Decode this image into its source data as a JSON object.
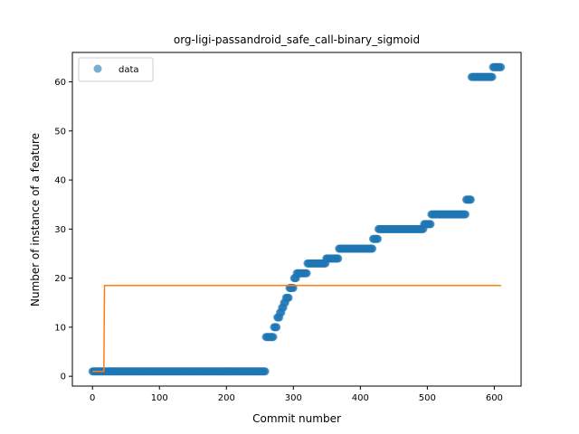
{
  "chart_data": {
    "type": "scatter",
    "title": "org-ligi-passandroid_safe_call-binary_sigmoid",
    "xlabel": "Commit number",
    "ylabel": "Number of instance of a feature",
    "xlim": [
      -30,
      640
    ],
    "ylim": [
      -2,
      66
    ],
    "xticks": [
      0,
      100,
      200,
      300,
      400,
      500,
      600
    ],
    "yticks": [
      0,
      10,
      20,
      30,
      40,
      50,
      60
    ],
    "grid": false,
    "legend_position": "upper-left",
    "series": [
      {
        "name": "data",
        "kind": "scatter",
        "color": "#1f77b4",
        "step_segments": [
          {
            "x_start": 0,
            "x_end": 258,
            "y": 1
          },
          {
            "x_start": 259,
            "x_end": 270,
            "y": 8
          },
          {
            "x_start": 271,
            "x_end": 275,
            "y": 10
          },
          {
            "x_start": 276,
            "x_end": 279,
            "y": 12
          },
          {
            "x_start": 280,
            "x_end": 282,
            "y": 13
          },
          {
            "x_start": 283,
            "x_end": 285,
            "y": 14
          },
          {
            "x_start": 286,
            "x_end": 288,
            "y": 15
          },
          {
            "x_start": 289,
            "x_end": 293,
            "y": 16
          },
          {
            "x_start": 294,
            "x_end": 300,
            "y": 18
          },
          {
            "x_start": 301,
            "x_end": 304,
            "y": 20
          },
          {
            "x_start": 305,
            "x_end": 309,
            "y": 21
          },
          {
            "x_start": 310,
            "x_end": 320,
            "y": 21
          },
          {
            "x_start": 321,
            "x_end": 348,
            "y": 23
          },
          {
            "x_start": 349,
            "x_end": 367,
            "y": 24
          },
          {
            "x_start": 368,
            "x_end": 418,
            "y": 26
          },
          {
            "x_start": 419,
            "x_end": 426,
            "y": 28
          },
          {
            "x_start": 427,
            "x_end": 494,
            "y": 30
          },
          {
            "x_start": 495,
            "x_end": 505,
            "y": 31
          },
          {
            "x_start": 506,
            "x_end": 557,
            "y": 33
          },
          {
            "x_start": 558,
            "x_end": 565,
            "y": 36
          },
          {
            "x_start": 566,
            "x_end": 597,
            "y": 61
          },
          {
            "x_start": 598,
            "x_end": 610,
            "y": 63
          }
        ]
      },
      {
        "name": "",
        "kind": "line",
        "color": "#ff7f0e",
        "points": [
          [
            0,
            1
          ],
          [
            17,
            1
          ],
          [
            18,
            18.5
          ],
          [
            610,
            18.5
          ]
        ]
      }
    ]
  }
}
